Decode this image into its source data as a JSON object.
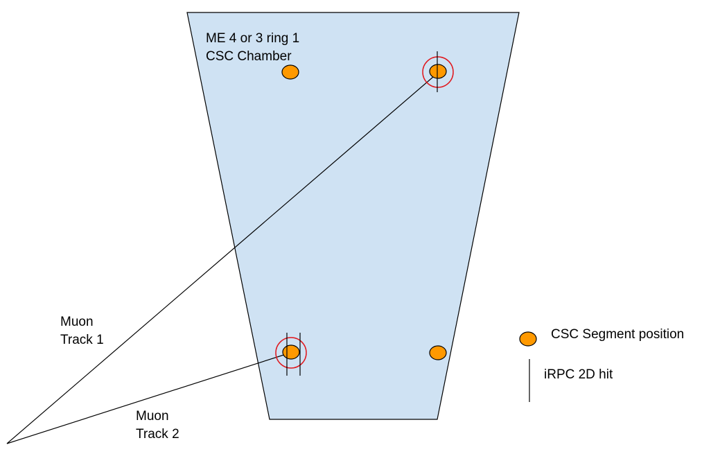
{
  "chamber": {
    "title_line1": "ME 4 or 3 ring 1",
    "title_line2": "CSC Chamber",
    "fill_color": "#cfe2f3",
    "stroke_color": "#000000"
  },
  "tracks": [
    {
      "line1": "Muon",
      "line2": "Track 1"
    },
    {
      "line1": "Muon",
      "line2": "Track 2"
    }
  ],
  "legend": {
    "segment_label": "CSC Segment position",
    "hit_label": "iRPC 2D hit"
  },
  "colors": {
    "segment_fill": "#ff9900",
    "segment_stroke": "#000000",
    "match_ring": "#e0161c",
    "track_line": "#000000",
    "hit_line": "#000000"
  }
}
